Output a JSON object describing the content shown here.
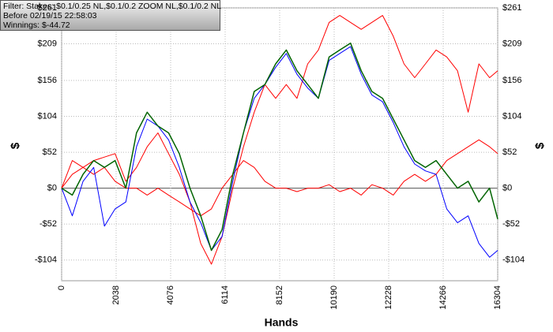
{
  "chart_data": {
    "type": "line",
    "x_label": "Hands",
    "y_label": "$",
    "info": [
      "Filter: Stakes: $0.1/0.25 NL,$0.1/0.2 ZOOM NL,$0.1/0.2 NL",
      "Before 02/19/15 22:58:03",
      "Winnings: $-44.72"
    ],
    "xlim": [
      0,
      16304
    ],
    "xticks": [
      0,
      2038,
      4076,
      6114,
      8152,
      10190,
      12228,
      14266,
      16304
    ],
    "ylim": [
      -134,
      261
    ],
    "yticks": [
      {
        "value": -104,
        "label": "-$104"
      },
      {
        "value": -52,
        "label": "-$52"
      },
      {
        "value": 0,
        "label": "$0"
      },
      {
        "value": 52,
        "label": "$52"
      },
      {
        "value": 104,
        "label": "$104"
      },
      {
        "value": 156,
        "label": "$156"
      },
      {
        "value": 209,
        "label": "$209"
      },
      {
        "value": 261,
        "label": "$261"
      }
    ],
    "grid": true,
    "x": [
      0,
      400,
      800,
      1200,
      1600,
      2000,
      2400,
      2800,
      3200,
      3600,
      4000,
      4400,
      4800,
      5200,
      5600,
      6000,
      6400,
      6800,
      7200,
      7600,
      8000,
      8400,
      8800,
      9200,
      9600,
      10000,
      10400,
      10800,
      11200,
      11600,
      12000,
      12400,
      12800,
      13200,
      13600,
      14000,
      14400,
      14800,
      15200,
      15600,
      16000,
      16304
    ],
    "series": [
      {
        "color": "#ff0000",
        "values": [
          0,
          20,
          30,
          40,
          45,
          50,
          10,
          30,
          60,
          80,
          50,
          20,
          -20,
          -80,
          -110,
          -70,
          0,
          60,
          110,
          150,
          130,
          150,
          130,
          180,
          200,
          240,
          250,
          240,
          230,
          240,
          250,
          220,
          180,
          160,
          180,
          200,
          190,
          170,
          110,
          180,
          160,
          170
        ]
      },
      {
        "color": "#ff0000",
        "values": [
          0,
          40,
          30,
          20,
          30,
          10,
          0,
          0,
          -10,
          0,
          -10,
          -20,
          -30,
          -40,
          -30,
          0,
          20,
          40,
          30,
          10,
          0,
          0,
          -5,
          0,
          0,
          5,
          -5,
          0,
          -10,
          5,
          0,
          -10,
          10,
          20,
          10,
          20,
          40,
          50,
          60,
          70,
          60,
          50
        ]
      },
      {
        "color": "#0000ff",
        "values": [
          0,
          -40,
          10,
          30,
          -55,
          -30,
          -20,
          60,
          100,
          90,
          70,
          30,
          -20,
          -50,
          -90,
          -70,
          10,
          80,
          130,
          150,
          175,
          195,
          165,
          145,
          130,
          185,
          195,
          205,
          165,
          135,
          125,
          95,
          60,
          35,
          25,
          20,
          -30,
          -50,
          -40,
          -80,
          -100,
          -90
        ]
      },
      {
        "color": "#006400",
        "values": [
          0,
          -10,
          20,
          40,
          30,
          40,
          0,
          80,
          110,
          90,
          80,
          50,
          0,
          -40,
          -90,
          -60,
          20,
          80,
          140,
          150,
          180,
          200,
          170,
          150,
          130,
          190,
          200,
          210,
          170,
          140,
          130,
          100,
          70,
          40,
          30,
          40,
          20,
          0,
          10,
          -20,
          0,
          -44.72
        ]
      }
    ]
  }
}
